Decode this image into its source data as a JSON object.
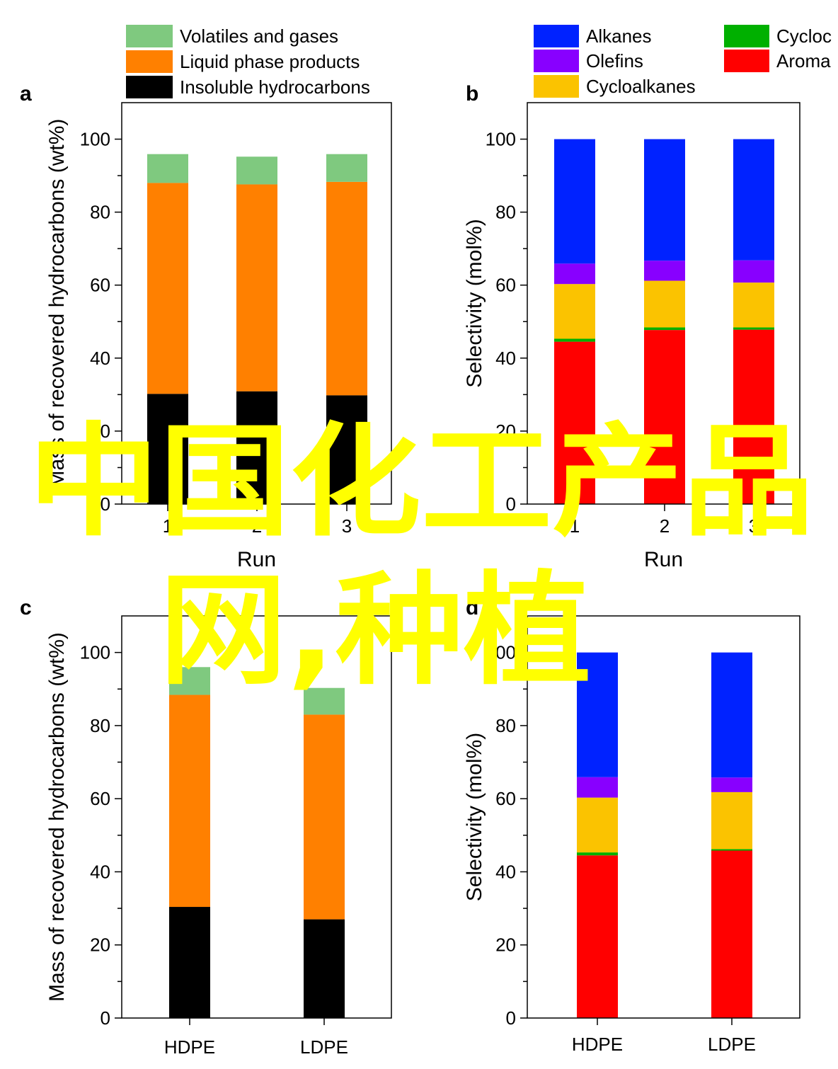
{
  "chart_data": [
    {
      "panel": "a",
      "type": "bar",
      "stacked": true,
      "categories": [
        "1",
        "2",
        "3"
      ],
      "xlabel": "Run",
      "ylabel": "Mass of recovered hydrocarbons (wt%)",
      "ylim": [
        0,
        110
      ],
      "yticks": [
        0,
        20,
        40,
        60,
        80,
        100
      ],
      "legend_position": "top",
      "series": [
        {
          "name": "Insoluble hydrocarbons",
          "color": "#000000",
          "values": [
            30.2,
            30.9,
            29.8
          ]
        },
        {
          "name": "Liquid phase products",
          "color": "#ff8000",
          "values": [
            57.8,
            56.7,
            58.5
          ]
        },
        {
          "name": "Volatiles and gases",
          "color": "#7fc97f",
          "values": [
            7.9,
            7.6,
            7.6
          ]
        }
      ]
    },
    {
      "panel": "b",
      "type": "bar",
      "stacked": true,
      "categories": [
        "1",
        "2",
        "3"
      ],
      "xlabel": "Run",
      "ylabel": "Selectivity (mol%)",
      "ylim": [
        0,
        110
      ],
      "yticks": [
        0,
        20,
        40,
        60,
        80,
        100
      ],
      "legend_position": "top",
      "series": [
        {
          "name": "Aromatics",
          "color": "#ff0000",
          "values": [
            44.5,
            47.7,
            47.8
          ]
        },
        {
          "name": "Cycloalkenes",
          "color": "#00b000",
          "values": [
            0.8,
            0.7,
            0.6
          ]
        },
        {
          "name": "Cycloalkanes",
          "color": "#fbc300",
          "values": [
            15.0,
            12.8,
            12.3
          ]
        },
        {
          "name": "Olefins",
          "color": "#8800ff",
          "values": [
            5.6,
            5.5,
            6.1
          ]
        },
        {
          "name": "Alkanes",
          "color": "#0022ff",
          "values": [
            34.1,
            33.3,
            33.2
          ]
        }
      ]
    },
    {
      "panel": "c",
      "type": "bar",
      "stacked": true,
      "categories": [
        "HDPE",
        "LDPE"
      ],
      "xlabel": "",
      "ylabel": "Mass of recovered hydrocarbons (wt%)",
      "ylim": [
        0,
        110
      ],
      "yticks": [
        0,
        20,
        40,
        60,
        80,
        100
      ],
      "series": [
        {
          "name": "Insoluble hydrocarbons",
          "color": "#000000",
          "values": [
            30.4,
            27.0
          ]
        },
        {
          "name": "Liquid phase products",
          "color": "#ff8000",
          "values": [
            58.0,
            56.0
          ]
        },
        {
          "name": "Volatiles and gases",
          "color": "#7fc97f",
          "values": [
            7.6,
            7.3
          ]
        }
      ]
    },
    {
      "panel": "d",
      "type": "bar",
      "stacked": true,
      "categories": [
        "HDPE",
        "LDPE"
      ],
      "xlabel": "",
      "ylabel": "Selectivity (mol%)",
      "ylim": [
        0,
        110
      ],
      "yticks": [
        0,
        20,
        40,
        60,
        80,
        100
      ],
      "series": [
        {
          "name": "Aromatics",
          "color": "#ff0000",
          "values": [
            44.5,
            45.8
          ]
        },
        {
          "name": "Cycloalkenes",
          "color": "#00b000",
          "values": [
            0.8,
            0.4
          ]
        },
        {
          "name": "Cycloalkanes",
          "color": "#fbc300",
          "values": [
            15.0,
            15.6
          ]
        },
        {
          "name": "Olefins",
          "color": "#8800ff",
          "values": [
            5.6,
            4.0
          ]
        },
        {
          "name": "Alkanes",
          "color": "#0022ff",
          "values": [
            34.1,
            34.2
          ]
        }
      ]
    }
  ],
  "legend_a": [
    {
      "label": "Volatiles and gases",
      "color": "#7fc97f"
    },
    {
      "label": "Liquid phase products",
      "color": "#ff8000"
    },
    {
      "label": "Insoluble hydrocarbons",
      "color": "#000000"
    }
  ],
  "legend_b": [
    {
      "label": "Alkanes",
      "color": "#0022ff"
    },
    {
      "label": "Olefins",
      "color": "#8800ff"
    },
    {
      "label": "Cycloalkanes",
      "color": "#fbc300"
    },
    {
      "label": "Cycloc",
      "color": "#00b000"
    },
    {
      "label": "Aroma",
      "color": "#ff0000"
    }
  ],
  "watermark": {
    "line1": "中国化工产品",
    "line2": "网,种植",
    "color": "#ffff00"
  }
}
